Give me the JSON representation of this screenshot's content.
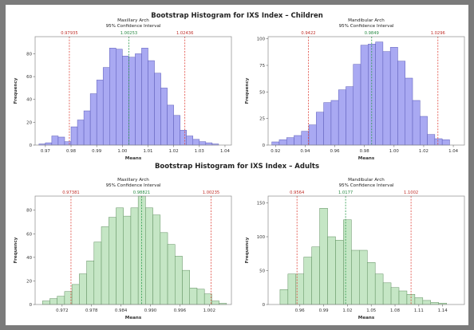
{
  "row_titles": {
    "children": "Bootstrap Histogram for IXS Index – Children",
    "adults": "Bootstrap Histogram for IXS Index – Adults"
  },
  "colors": {
    "children_fill": "#a9a9f2",
    "children_edge": "#5a5ab8",
    "adults_fill": "#c5e6c5",
    "adults_edge": "#5f8f5f",
    "ci_line": "#e0463c",
    "mean_line": "#2a9a4a",
    "ci_label": "#c0302a",
    "mean_label": "#2a8a45"
  },
  "chart_data": [
    {
      "type": "bar",
      "title": "Maxillary Arch",
      "subtitle": "95% Confidence Interval",
      "xlabel": "Means",
      "ylabel": "Frequency",
      "xlim": [
        0.966,
        1.0425
      ],
      "ylim": [
        0,
        95
      ],
      "x_ticks": [
        0.97,
        0.98,
        0.99,
        1.0,
        1.01,
        1.02,
        1.03,
        1.04
      ],
      "x_tick_labels": [
        "0.97",
        "0.98",
        "0.99",
        "1.00",
        "1.01",
        "1.02",
        "1.03",
        "1.04"
      ],
      "y_ticks": [
        0,
        20,
        40,
        60,
        80
      ],
      "y_tick_labels": [
        "0",
        "20",
        "40",
        "60",
        "80"
      ],
      "bin_start": 0.9675,
      "bin_width": 0.0025,
      "values": [
        1,
        2,
        8,
        7,
        3,
        16,
        22,
        30,
        45,
        57,
        68,
        85,
        84,
        78,
        77,
        80,
        85,
        74,
        63,
        50,
        35,
        26,
        13,
        8,
        5,
        3,
        2,
        1
      ],
      "ci_lower": 0.97935,
      "ci_lower_label": "0.97935",
      "mean": 1.00253,
      "mean_label": "1.00253",
      "ci_upper": 1.02436,
      "ci_upper_label": "1.02436",
      "legend": "none",
      "grid": false
    },
    {
      "type": "bar",
      "title": "Mandibular Arch",
      "subtitle": "95% Confidence Interval",
      "xlabel": "Means",
      "ylabel": "Frequency",
      "xlim": [
        0.915,
        1.0475
      ],
      "ylim": [
        0,
        102
      ],
      "x_ticks": [
        0.92,
        0.94,
        0.96,
        0.98,
        1.0,
        1.02,
        1.04
      ],
      "x_tick_labels": [
        "0.92",
        "0.94",
        "0.96",
        "0.98",
        "1.00",
        "1.02",
        "1.04"
      ],
      "y_ticks": [
        0,
        25,
        50,
        75,
        100
      ],
      "y_tick_labels": [
        "0",
        "25",
        "50",
        "75",
        "100"
      ],
      "bin_start": 0.9175,
      "bin_width": 0.005,
      "values": [
        3,
        5,
        7,
        9,
        13,
        19,
        31,
        40,
        42,
        52,
        55,
        76,
        94,
        95,
        97,
        88,
        92,
        79,
        63,
        42,
        27,
        10,
        6,
        5
      ],
      "ci_lower": 0.9422,
      "ci_lower_label": "0.9422",
      "mean": 0.9849,
      "mean_label": "0.9849",
      "ci_upper": 1.0296,
      "ci_upper_label": "1.0296",
      "legend": "none",
      "grid": false
    },
    {
      "type": "bar",
      "title": "Maxillary Arch",
      "subtitle": "95% Confidence Interval",
      "xlabel": "Means",
      "ylabel": "Frequency",
      "xlim": [
        0.9665,
        1.0065
      ],
      "ylim": [
        0,
        92
      ],
      "x_ticks": [
        0.972,
        0.978,
        0.984,
        0.99,
        0.996,
        1.002
      ],
      "x_tick_labels": [
        "0.972",
        "0.978",
        "0.984",
        "0.990",
        "0.996",
        "1.002"
      ],
      "y_ticks": [
        0,
        20,
        40,
        60,
        80
      ],
      "y_tick_labels": [
        "0",
        "20",
        "40",
        "60",
        "80"
      ],
      "bin_start": 0.968,
      "bin_width": 0.0015,
      "values": [
        3,
        5,
        7,
        11,
        17,
        26,
        37,
        53,
        66,
        74,
        82,
        75,
        82,
        92,
        82,
        76,
        61,
        51,
        41,
        29,
        14,
        13,
        9,
        3,
        1
      ],
      "ci_lower": 0.97381,
      "ci_lower_label": "0.97381",
      "mean": 0.98821,
      "mean_label": "0.98821",
      "ci_upper": 1.00235,
      "ci_upper_label": "1.00235",
      "legend": "none",
      "grid": false
    },
    {
      "type": "bar",
      "title": "Mandibular Arch",
      "subtitle": "95% Confidence Interval",
      "xlabel": "Means",
      "ylabel": "Frequency",
      "xlim": [
        0.92,
        1.1675
      ],
      "ylim": [
        0,
        160
      ],
      "x_ticks": [
        0.96,
        0.99,
        1.02,
        1.05,
        1.08,
        1.11,
        1.14
      ],
      "x_tick_labels": [
        "0.96",
        "0.99",
        "1.02",
        "1.05",
        "1.08",
        "1.11",
        "1.14"
      ],
      "y_ticks": [
        0,
        50,
        100,
        150
      ],
      "y_tick_labels": [
        "0",
        "50",
        "100",
        "150"
      ],
      "bin_start": 0.935,
      "bin_width": 0.01,
      "values": [
        22,
        45,
        45,
        70,
        85,
        142,
        100,
        95,
        125,
        80,
        80,
        62,
        45,
        32,
        25,
        20,
        15,
        10,
        6,
        3,
        2
      ],
      "ci_lower": 0.9564,
      "ci_lower_label": "0.9564",
      "mean": 1.0177,
      "mean_label": "1.0177",
      "ci_upper": 1.1002,
      "ci_upper_label": "1.1002",
      "legend": "none",
      "grid": false
    }
  ]
}
